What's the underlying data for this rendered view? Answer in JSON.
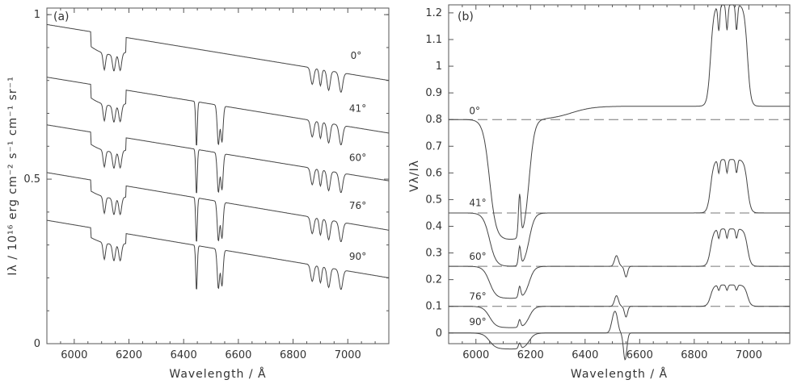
{
  "chart_data": [
    {
      "panel_label": "(a)",
      "type": "line",
      "xlabel": "Wavelength / Å",
      "ylabel": "Iλ / 10¹⁶ erg cm⁻² s⁻¹ cm⁻¹ sr⁻¹",
      "xlim": [
        5900,
        7150
      ],
      "ylim": [
        0,
        1.02
      ],
      "x_ticks": [
        6000,
        6200,
        6400,
        6600,
        6800,
        7000
      ],
      "y_ticks": [
        {
          "v": 0,
          "label": "0"
        },
        {
          "v": 0.5,
          "label": "0.5"
        },
        {
          "v": 1,
          "label": "1"
        }
      ],
      "series": [
        {
          "name": "0°",
          "start": 0.97,
          "end": 0.8,
          "label_x": 7010,
          "label_y": 0.865
        },
        {
          "name": "41°",
          "start": 0.81,
          "end": 0.64,
          "label_x": 7005,
          "label_y": 0.705
        },
        {
          "name": "60°",
          "start": 0.665,
          "end": 0.495,
          "label_x": 7005,
          "label_y": 0.555
        },
        {
          "name": "76°",
          "start": 0.52,
          "end": 0.345,
          "label_x": 7005,
          "label_y": 0.41
        },
        {
          "name": "90°",
          "start": 0.375,
          "end": 0.2,
          "label_x": 7005,
          "label_y": 0.255
        }
      ]
    },
    {
      "panel_label": "(b)",
      "type": "line",
      "xlabel": "Wavelength / Å",
      "ylabel": "Vλ/Iλ",
      "xlim": [
        5900,
        7150
      ],
      "ylim": [
        -0.04,
        1.23
      ],
      "x_ticks": [
        6000,
        6200,
        6400,
        6600,
        6800,
        7000
      ],
      "y_ticks": [
        0,
        0.1,
        0.2,
        0.3,
        0.4,
        0.5,
        0.6,
        0.7,
        0.8,
        0.9,
        1,
        1.1,
        1.2
      ],
      "y_tick_labels": [
        "0",
        "0.1",
        "0.2",
        "0.3",
        "0.4",
        "0.5",
        "0.6",
        "0.7",
        "0.8",
        "0.9",
        "1",
        "1.1",
        "1.2"
      ],
      "series": [
        {
          "name": "0°",
          "baseline": 0.8,
          "label_x": 5975,
          "label_y": 0.82
        },
        {
          "name": "41°",
          "baseline": 0.45,
          "label_x": 5975,
          "label_y": 0.475
        },
        {
          "name": "60°",
          "baseline": 0.25,
          "label_x": 5975,
          "label_y": 0.275
        },
        {
          "name": "76°",
          "baseline": 0.1,
          "label_x": 5975,
          "label_y": 0.125
        },
        {
          "name": "90°",
          "baseline": 0.0,
          "label_x": 5975,
          "label_y": 0.03
        }
      ]
    }
  ]
}
